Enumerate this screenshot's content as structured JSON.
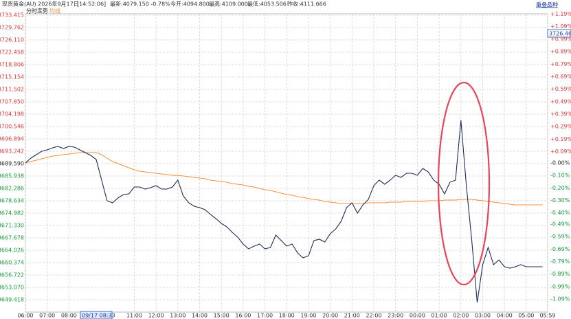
{
  "header": {
    "items": [
      "现货黄金(AU) 2026年9月17日",
      "[14:52:06]",
      "最新:4079.150 -0.78%",
      "今开:4094.800",
      "最高:4109.000",
      "最低:4053.506",
      "昨收:4111.666"
    ],
    "link": "重叠品种",
    "tab": "分时走势",
    "legend_avg": "均线"
  },
  "chart_data": {
    "type": "line",
    "cursor_label": "09/17 08:33",
    "last_price_label": "3726.463",
    "xlim": [
      0,
      1439
    ],
    "xticks": [
      {
        "value": 0,
        "label": "06:00"
      },
      {
        "value": 60,
        "label": "07:00"
      },
      {
        "value": 120,
        "label": "08:00"
      },
      {
        "value": 300,
        "label": "11:00"
      },
      {
        "value": 360,
        "label": "12:00"
      },
      {
        "value": 420,
        "label": "13:00"
      },
      {
        "value": 480,
        "label": "14:00"
      },
      {
        "value": 540,
        "label": "15:00"
      },
      {
        "value": 600,
        "label": "16:00"
      },
      {
        "value": 660,
        "label": "17:00"
      },
      {
        "value": 720,
        "label": "18:00"
      },
      {
        "value": 780,
        "label": "19:00"
      },
      {
        "value": 840,
        "label": "20:00"
      },
      {
        "value": 900,
        "label": "21:00"
      },
      {
        "value": 960,
        "label": "22:00"
      },
      {
        "value": 1020,
        "label": "23:00"
      },
      {
        "value": 1080,
        "label": "00:00"
      },
      {
        "value": 1140,
        "label": "01:00"
      },
      {
        "value": 1200,
        "label": "02:00"
      },
      {
        "value": 1260,
        "label": "03:00"
      },
      {
        "value": 1320,
        "label": "04:00"
      },
      {
        "value": 1380,
        "label": "05:00"
      },
      {
        "value": 1439,
        "label": "05:59"
      }
    ],
    "ylim": [
      3645.77,
      3733.82
    ],
    "yticks": [
      3733.415,
      3729.762,
      {
        "value": 3726.11,
        "label": "3726.110"
      },
      3722.458,
      3718.806,
      3715.154,
      3711.502,
      {
        "value": 3707.85,
        "label": "3707.850"
      },
      3704.198,
      3700.546,
      3696.894,
      3693.242,
      {
        "value": 3689.59,
        "label": "3689.590"
      },
      3685.938,
      3682.286,
      3678.634,
      3674.982,
      {
        "value": 3671.33,
        "label": "3671.330"
      },
      3667.678,
      3664.026,
      3660.374,
      3656.722,
      {
        "value": 3653.07,
        "label": "3653.070"
      },
      3649.418
    ],
    "y2lim": [
      -1.194,
      1.193
    ],
    "y2ticks": [
      {
        "value": 1.19,
        "label": "+1.19%"
      },
      {
        "value": 1.09,
        "label": "+1.09%"
      },
      {
        "value": 0.99,
        "label": "+0.99%"
      },
      {
        "value": 0.89,
        "label": "+0.89%"
      },
      {
        "value": 0.79,
        "label": "+0.79%"
      },
      {
        "value": 0.69,
        "label": "+0.69%"
      },
      {
        "value": 0.59,
        "label": "+0.59%"
      },
      {
        "value": 0.49,
        "label": "+0.49%"
      },
      {
        "value": 0.39,
        "label": "+0.39%"
      },
      {
        "value": 0.29,
        "label": "+0.29%"
      },
      {
        "value": 0.19,
        "label": "+0.19%"
      },
      {
        "value": 0.09,
        "label": "+0.09%"
      },
      {
        "value": 0,
        "label": "-0.00%"
      },
      {
        "value": -0.1,
        "label": "-0.10%"
      },
      {
        "value": -0.2,
        "label": "-0.20%"
      },
      {
        "value": -0.3,
        "label": "-0.30%"
      },
      {
        "value": -0.4,
        "label": "-0.40%"
      },
      {
        "value": -0.49,
        "label": "-0.49%"
      },
      {
        "value": -0.59,
        "label": "-0.59%"
      },
      {
        "value": -0.69,
        "label": "-0.69%"
      },
      {
        "value": -0.79,
        "label": "-0.79%"
      },
      {
        "value": -0.89,
        "label": "-0.89%"
      },
      {
        "value": -0.99,
        "label": "-0.99%"
      },
      {
        "value": -1.09,
        "label": "-1.09%"
      }
    ],
    "grid": true,
    "x": [
      0,
      15,
      30,
      45,
      60,
      75,
      90,
      105,
      120,
      135,
      150,
      165,
      180,
      195,
      210,
      225,
      240,
      255,
      270,
      285,
      300,
      315,
      330,
      345,
      360,
      375,
      390,
      405,
      420,
      435,
      450,
      465,
      480,
      495,
      510,
      525,
      540,
      555,
      570,
      585,
      600,
      615,
      630,
      645,
      660,
      675,
      690,
      705,
      720,
      735,
      750,
      765,
      780,
      795,
      810,
      825,
      840,
      855,
      870,
      885,
      900,
      915,
      930,
      945,
      960,
      975,
      990,
      1005,
      1020,
      1035,
      1050,
      1065,
      1080,
      1095,
      1110,
      1125,
      1140,
      1155,
      1170,
      1185,
      1200,
      1215,
      1230,
      1245,
      1260,
      1275,
      1290,
      1305,
      1320,
      1335,
      1350,
      1365,
      1380,
      1395,
      1410,
      1425
    ],
    "series": [
      {
        "color": "#1c2b58",
        "values": [
          3689.8,
          3691.22,
          3692.23,
          3693.25,
          3693.65,
          3694.26,
          3694.67,
          3694.06,
          3694.67,
          3694.46,
          3693.65,
          3692.84,
          3692.03,
          3690.81,
          3684.73,
          3678.64,
          3678.03,
          3679.45,
          3680.46,
          3680.67,
          3682.7,
          3682.7,
          3682.09,
          3682.49,
          3683.1,
          3682.09,
          3682.09,
          3682.7,
          3684.73,
          3680.06,
          3678.03,
          3677.02,
          3676.61,
          3676.0,
          3674.58,
          3673.36,
          3671.94,
          3670.93,
          3669.31,
          3667.89,
          3665.86,
          3664.44,
          3665.25,
          3665.86,
          3664.44,
          3664.84,
          3668.49,
          3666.87,
          3665.25,
          3665.86,
          3663.22,
          3661.8,
          3662.41,
          3666.87,
          3667.28,
          3666.47,
          3668.9,
          3670.32,
          3672.55,
          3676.61,
          3678.03,
          3674.99,
          3677.42,
          3679.04,
          3683.1,
          3684.73,
          3683.51,
          3684.73,
          3686.14,
          3685.53,
          3686.75,
          3686.75,
          3686.14,
          3688.17,
          3687.16,
          3684.73,
          3683.51,
          3680.67,
          3684.11,
          3684.73,
          3702.37,
          3683.1,
          3666.87,
          3648.61,
          3659.77,
          3664.84,
          3659.77,
          3661.19,
          3659.16,
          3658.75,
          3659.16,
          3659.77,
          3659.16,
          3659.16,
          3659.16,
          3659.16
        ]
      },
      {
        "name": "均线",
        "color": "#f0903a",
        "values": [
          3689.8,
          3690.2,
          3690.61,
          3691.01,
          3691.42,
          3691.82,
          3692.03,
          3692.23,
          3692.43,
          3692.64,
          3692.84,
          3692.84,
          3692.84,
          3692.84,
          3692.23,
          3691.22,
          3690.2,
          3689.59,
          3688.98,
          3688.38,
          3687.77,
          3687.36,
          3687.16,
          3686.95,
          3686.75,
          3686.55,
          3686.35,
          3686.14,
          3686.14,
          3685.94,
          3685.73,
          3685.53,
          3685.33,
          3685.12,
          3684.72,
          3684.52,
          3684.31,
          3684.11,
          3683.71,
          3683.5,
          3683.3,
          3682.89,
          3682.69,
          3682.29,
          3681.88,
          3681.68,
          3681.27,
          3680.87,
          3680.46,
          3680.26,
          3679.85,
          3679.65,
          3679.24,
          3679.04,
          3678.84,
          3678.43,
          3678.23,
          3678.03,
          3677.82,
          3677.82,
          3677.82,
          3677.82,
          3677.82,
          3678.03,
          3678.03,
          3678.03,
          3678.03,
          3678.23,
          3678.23,
          3678.23,
          3678.43,
          3678.43,
          3678.43,
          3678.43,
          3678.63,
          3678.63,
          3678.63,
          3678.84,
          3678.84,
          3678.84,
          3679.04,
          3679.04,
          3679.04,
          3678.84,
          3678.63,
          3678.43,
          3678.23,
          3678.03,
          3677.82,
          3677.62,
          3677.42,
          3677.42,
          3677.42,
          3677.42,
          3677.42,
          3677.42
        ]
      }
    ]
  }
}
